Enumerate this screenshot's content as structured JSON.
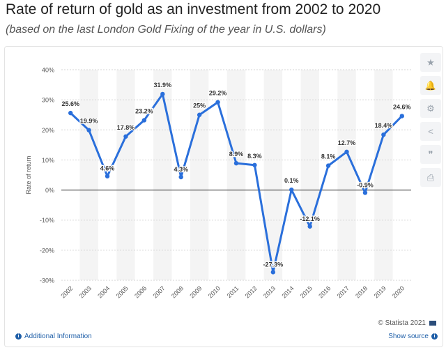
{
  "header": {
    "title": "Rate of return of gold as an investment from 2002 to 2020",
    "subtitle": "(based on the last London Gold Fixing of the year in U.S. dollars)"
  },
  "toolbar": {
    "items": [
      {
        "name": "favorite",
        "icon": "star-icon",
        "glyph": "★"
      },
      {
        "name": "notification",
        "icon": "bell-icon",
        "glyph": "🔔"
      },
      {
        "name": "settings",
        "icon": "gear-icon",
        "glyph": "⚙"
      },
      {
        "name": "share",
        "icon": "share-icon",
        "glyph": "<"
      },
      {
        "name": "cite",
        "icon": "quote-icon",
        "glyph": "❞"
      },
      {
        "name": "print",
        "icon": "print-icon",
        "glyph": "⎙"
      }
    ]
  },
  "footer": {
    "additional_info": "Additional Information",
    "copyright": "© Statista 2021",
    "show_source": "Show source"
  },
  "colors": {
    "line": "#2a6fdb",
    "band": "#f4f4f4",
    "grid": "#d6d6d6",
    "zero": "#222222"
  },
  "chart_data": {
    "type": "line",
    "title": "Rate of return of gold as an investment from 2002 to 2020",
    "xlabel": "",
    "ylabel": "Rate of return",
    "ylim": [
      -30,
      40
    ],
    "yticks": [
      40,
      30,
      20,
      10,
      0,
      -10,
      -20,
      -30
    ],
    "ytick_labels": [
      "40%",
      "30%",
      "20%",
      "10%",
      "0%",
      "-10%",
      "-20%",
      "-30%"
    ],
    "categories": [
      "2002",
      "2003",
      "2004",
      "2005",
      "2006",
      "2007",
      "2008",
      "2009",
      "2010",
      "2011",
      "2012",
      "2013",
      "2014",
      "2015",
      "2016",
      "2017",
      "2018",
      "2019",
      "2020"
    ],
    "values": [
      25.6,
      19.9,
      4.6,
      17.8,
      23.2,
      31.9,
      4.3,
      25,
      29.2,
      8.9,
      8.3,
      -27.3,
      0.1,
      -12.1,
      8.1,
      12.7,
      -0.9,
      18.4,
      24.6
    ],
    "data_labels": [
      "25.6%",
      "19.9%",
      "4.6%",
      "17.8%",
      "23.2%",
      "31.9%",
      "4.3%",
      "25%",
      "29.2%",
      "8.9%",
      "8.3%",
      "-27.3%",
      "0.1%",
      "-12.1%",
      "8.1%",
      "12.7%",
      "-0.9%",
      "18.4%",
      "24.6%"
    ],
    "series": [
      {
        "name": "Rate of return"
      }
    ],
    "grid": true,
    "legend": "none"
  }
}
